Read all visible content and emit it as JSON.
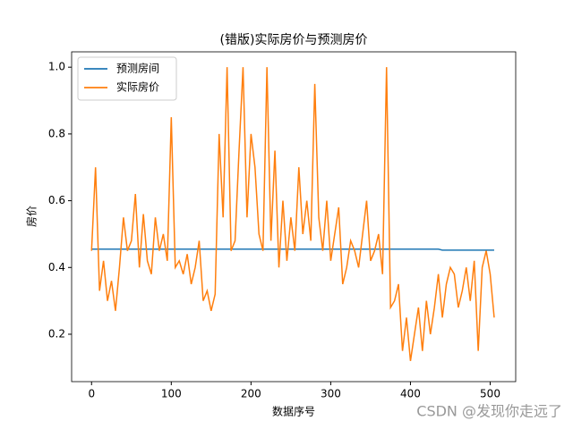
{
  "chart_data": {
    "type": "line",
    "title": "(错版)实际房价与预测房价",
    "xlabel": "数据序号",
    "ylabel": "房价",
    "watermark": "CSDN @发现你走远了",
    "legend": "upper left",
    "x": [
      0,
      5,
      10,
      15,
      20,
      25,
      30,
      35,
      40,
      45,
      50,
      55,
      60,
      65,
      70,
      75,
      80,
      85,
      90,
      95,
      100,
      105,
      110,
      115,
      120,
      125,
      130,
      135,
      140,
      145,
      150,
      155,
      160,
      165,
      170,
      175,
      180,
      185,
      190,
      195,
      200,
      205,
      210,
      215,
      220,
      225,
      230,
      235,
      240,
      245,
      250,
      255,
      260,
      265,
      270,
      275,
      280,
      285,
      290,
      295,
      300,
      305,
      310,
      315,
      320,
      325,
      330,
      335,
      340,
      345,
      350,
      355,
      360,
      365,
      370,
      375,
      380,
      385,
      390,
      395,
      400,
      405,
      410,
      415,
      420,
      425,
      430,
      435,
      440,
      445,
      450,
      455,
      460,
      465,
      470,
      475,
      480,
      485,
      490,
      495,
      500,
      505
    ],
    "series": [
      {
        "name": "预测房间",
        "color": "#1f77b4",
        "values": [
          0.455,
          0.455,
          0.455,
          0.455,
          0.455,
          0.455,
          0.455,
          0.455,
          0.455,
          0.455,
          0.455,
          0.455,
          0.455,
          0.455,
          0.455,
          0.455,
          0.455,
          0.455,
          0.455,
          0.455,
          0.455,
          0.455,
          0.455,
          0.455,
          0.455,
          0.455,
          0.455,
          0.455,
          0.455,
          0.455,
          0.455,
          0.455,
          0.455,
          0.455,
          0.455,
          0.455,
          0.455,
          0.455,
          0.455,
          0.455,
          0.455,
          0.455,
          0.455,
          0.455,
          0.455,
          0.455,
          0.455,
          0.455,
          0.455,
          0.455,
          0.455,
          0.455,
          0.455,
          0.455,
          0.455,
          0.455,
          0.455,
          0.455,
          0.455,
          0.455,
          0.455,
          0.455,
          0.455,
          0.455,
          0.455,
          0.455,
          0.455,
          0.455,
          0.455,
          0.455,
          0.455,
          0.455,
          0.455,
          0.455,
          0.455,
          0.455,
          0.455,
          0.455,
          0.455,
          0.455,
          0.455,
          0.455,
          0.455,
          0.455,
          0.455,
          0.455,
          0.455,
          0.455,
          0.452,
          0.452,
          0.452,
          0.452,
          0.452,
          0.452,
          0.452,
          0.452,
          0.452,
          0.452,
          0.452,
          0.452,
          0.452,
          0.452
        ]
      },
      {
        "name": "实际房价",
        "color": "#ff7f0e",
        "values": [
          0.45,
          0.7,
          0.33,
          0.42,
          0.3,
          0.36,
          0.27,
          0.4,
          0.55,
          0.45,
          0.48,
          0.62,
          0.4,
          0.56,
          0.42,
          0.38,
          0.55,
          0.45,
          0.5,
          0.42,
          0.85,
          0.4,
          0.42,
          0.38,
          0.44,
          0.35,
          0.4,
          0.48,
          0.3,
          0.33,
          0.27,
          0.32,
          0.8,
          0.55,
          1.0,
          0.45,
          0.48,
          0.75,
          1.0,
          0.55,
          0.8,
          0.7,
          0.5,
          0.45,
          1.0,
          0.48,
          0.75,
          0.4,
          0.6,
          0.42,
          0.55,
          0.45,
          0.7,
          0.5,
          0.6,
          0.48,
          0.95,
          0.55,
          0.45,
          0.6,
          0.42,
          0.5,
          0.58,
          0.35,
          0.4,
          0.48,
          0.45,
          0.4,
          0.5,
          0.6,
          0.42,
          0.45,
          0.5,
          0.38,
          1.0,
          0.28,
          0.3,
          0.35,
          0.15,
          0.25,
          0.12,
          0.2,
          0.28,
          0.15,
          0.3,
          0.2,
          0.28,
          0.38,
          0.25,
          0.35,
          0.4,
          0.38,
          0.28,
          0.33,
          0.4,
          0.3,
          0.42,
          0.15,
          0.4,
          0.45,
          0.38,
          0.25
        ]
      }
    ],
    "xlim": [
      -25,
      532
    ],
    "ylim": [
      0.058,
      1.046
    ],
    "xticks": [
      0,
      100,
      200,
      300,
      400,
      500
    ],
    "yticks": [
      0.2,
      0.4,
      0.6,
      0.8,
      {
        "value": 1,
        "label": "1.0"
      }
    ]
  }
}
